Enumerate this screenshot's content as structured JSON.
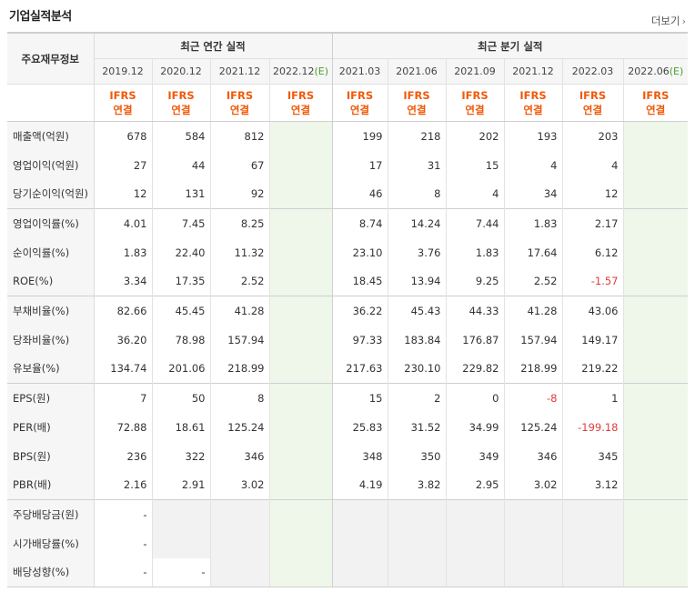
{
  "title": "기업실적분석",
  "more": {
    "label": "더보기",
    "icon": "chevron-right-icon"
  },
  "table": {
    "row_header": "주요재무정보",
    "groups": [
      {
        "label": "최근 연간 실적"
      },
      {
        "label": "최근 분기 실적"
      }
    ],
    "periods": [
      {
        "label": "2019.12",
        "est": ""
      },
      {
        "label": "2020.12",
        "est": ""
      },
      {
        "label": "2021.12",
        "est": ""
      },
      {
        "label": "2022.12",
        "est": "(E)"
      },
      {
        "label": "2021.03",
        "est": ""
      },
      {
        "label": "2021.06",
        "est": ""
      },
      {
        "label": "2021.09",
        "est": ""
      },
      {
        "label": "2021.12",
        "est": ""
      },
      {
        "label": "2022.03",
        "est": ""
      },
      {
        "label": "2022.06",
        "est": "(E)"
      }
    ],
    "basis": {
      "line1": "IFRS",
      "line2": "연결"
    },
    "rows": [
      {
        "label": "매출액(억원)",
        "values": [
          "678",
          "584",
          "812",
          "",
          "199",
          "218",
          "202",
          "193",
          "203",
          ""
        ]
      },
      {
        "label": "영업이익(억원)",
        "values": [
          "27",
          "44",
          "67",
          "",
          "17",
          "31",
          "15",
          "4",
          "4",
          ""
        ]
      },
      {
        "label": "당기순이익(억원)",
        "values": [
          "12",
          "131",
          "92",
          "",
          "46",
          "8",
          "4",
          "34",
          "12",
          ""
        ]
      },
      {
        "label": "영업이익률(%)",
        "values": [
          "4.01",
          "7.45",
          "8.25",
          "",
          "8.74",
          "14.24",
          "7.44",
          "1.83",
          "2.17",
          ""
        ]
      },
      {
        "label": "순이익률(%)",
        "values": [
          "1.83",
          "22.40",
          "11.32",
          "",
          "23.10",
          "3.76",
          "1.83",
          "17.64",
          "6.12",
          ""
        ]
      },
      {
        "label": "ROE(%)",
        "values": [
          "3.34",
          "17.35",
          "2.52",
          "",
          "18.45",
          "13.94",
          "9.25",
          "2.52",
          "-1.57",
          ""
        ]
      },
      {
        "label": "부채비율(%)",
        "values": [
          "82.66",
          "45.45",
          "41.28",
          "",
          "36.22",
          "45.43",
          "44.33",
          "41.28",
          "43.06",
          ""
        ]
      },
      {
        "label": "당좌비율(%)",
        "values": [
          "36.20",
          "78.98",
          "157.94",
          "",
          "97.33",
          "183.84",
          "176.87",
          "157.94",
          "149.17",
          ""
        ]
      },
      {
        "label": "유보율(%)",
        "values": [
          "134.74",
          "201.06",
          "218.99",
          "",
          "217.63",
          "230.10",
          "229.82",
          "218.99",
          "219.22",
          ""
        ]
      },
      {
        "label": "EPS(원)",
        "values": [
          "7",
          "50",
          "8",
          "",
          "15",
          "2",
          "0",
          "-8",
          "1",
          ""
        ]
      },
      {
        "label": "PER(배)",
        "values": [
          "72.88",
          "18.61",
          "125.24",
          "",
          "25.83",
          "31.52",
          "34.99",
          "125.24",
          "-199.18",
          ""
        ]
      },
      {
        "label": "BPS(원)",
        "values": [
          "236",
          "322",
          "346",
          "",
          "348",
          "350",
          "349",
          "346",
          "345",
          ""
        ]
      },
      {
        "label": "PBR(배)",
        "values": [
          "2.16",
          "2.91",
          "3.02",
          "",
          "4.19",
          "3.82",
          "2.95",
          "3.02",
          "3.12",
          ""
        ]
      },
      {
        "label": "주당배당금(원)",
        "values": [
          "-",
          "",
          "",
          "",
          "",
          "",
          "",
          "",
          "",
          ""
        ]
      },
      {
        "label": "시가배당률(%)",
        "values": [
          "-",
          "",
          "",
          "",
          "",
          "",
          "",
          "",
          "",
          ""
        ]
      },
      {
        "label": "배당성향(%)",
        "values": [
          "-",
          "-",
          "",
          "",
          "",
          "",
          "",
          "",
          "",
          ""
        ]
      }
    ]
  }
}
